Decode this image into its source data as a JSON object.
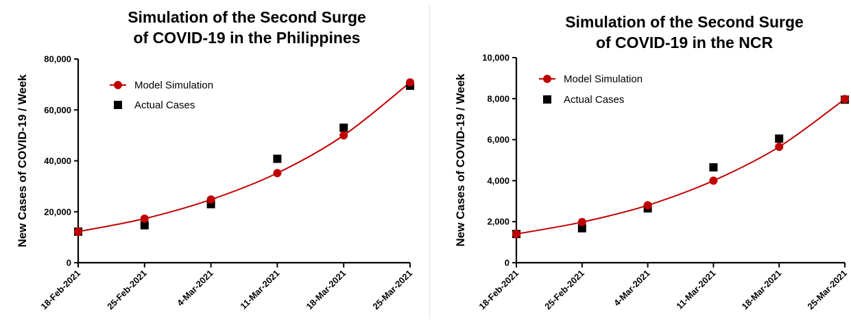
{
  "chart_data": [
    {
      "type": "line",
      "title": [
        "Simulation of the Second Surge",
        "of COVID-19 in the Philippines"
      ],
      "ylabel": "New Cases of COVID-19  / Week",
      "xlabel": "",
      "categories": [
        "18-Feb-2021",
        "25-Feb-2021",
        "4-Mar-2021",
        "11-Mar-2021",
        "18-Mar-2021",
        "25-Mar-2021"
      ],
      "ylim": [
        0,
        80000
      ],
      "yticks": [
        0,
        20000,
        40000,
        60000,
        80000
      ],
      "ytick_labels": [
        "0",
        "20,000",
        "40,000",
        "60,000",
        "80,000"
      ],
      "legend": "top-left",
      "grid": false,
      "series": [
        {
          "name": "Model Simulation",
          "marker": "circle",
          "line": true,
          "color": "#c00000",
          "values": [
            12200,
            17300,
            24800,
            35200,
            50000,
            70800
          ]
        },
        {
          "name": "Actual Cases",
          "marker": "square",
          "line": false,
          "color": "#000000",
          "values": [
            12200,
            14700,
            23000,
            40800,
            53000,
            69500
          ]
        }
      ]
    },
    {
      "type": "line",
      "title": [
        "Simulation of the Second Surge",
        "of COVID-19 in the NCR"
      ],
      "ylabel": "New Cases of COVID-19  / Week",
      "xlabel": "",
      "categories": [
        "18-Feb-2021",
        "25-Feb-2021",
        "4-Mar-2021",
        "11-Mar-2021",
        "18-Mar-2021",
        "25-Mar-2021"
      ],
      "ylim": [
        0,
        10000
      ],
      "yticks": [
        0,
        2000,
        4000,
        6000,
        8000,
        10000
      ],
      "ytick_labels": [
        "0",
        "2,000",
        "4,000",
        "6,000",
        "8,000",
        "10,000"
      ],
      "legend": "top-left",
      "grid": false,
      "series": [
        {
          "name": "Model Simulation",
          "marker": "circle",
          "line": true,
          "color": "#c00000",
          "values": [
            1400,
            1980,
            2800,
            4000,
            5650,
            7980
          ]
        },
        {
          "name": "Actual Cases",
          "marker": "square",
          "line": false,
          "color": "#000000",
          "values": [
            1400,
            1680,
            2650,
            4650,
            6050,
            7950
          ]
        }
      ]
    }
  ]
}
